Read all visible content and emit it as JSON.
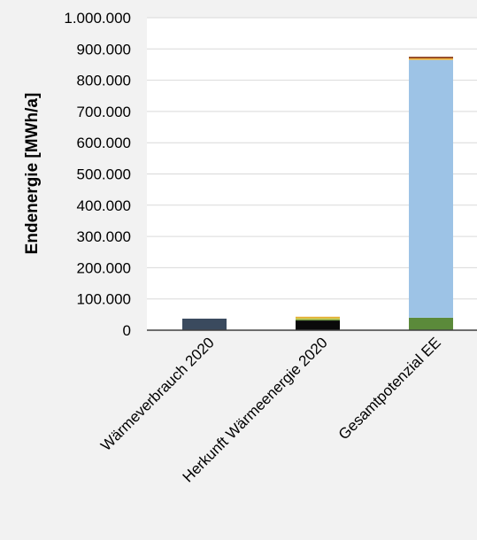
{
  "chart_data": {
    "type": "bar",
    "stacked": true,
    "ylabel": "Endenergie [MWh/a]",
    "ylim": [
      0,
      1000000
    ],
    "yticks": [
      {
        "value": 0,
        "label": "0"
      },
      {
        "value": 100000,
        "label": "100.000"
      },
      {
        "value": 200000,
        "label": "200.000"
      },
      {
        "value": 300000,
        "label": "300.000"
      },
      {
        "value": 400000,
        "label": "400.000"
      },
      {
        "value": 500000,
        "label": "500.000"
      },
      {
        "value": 600000,
        "label": "600.000"
      },
      {
        "value": 700000,
        "label": "700.000"
      },
      {
        "value": 800000,
        "label": "800.000"
      },
      {
        "value": 900000,
        "label": "900.000"
      },
      {
        "value": 1000000,
        "label": "1.000.000"
      }
    ],
    "categories": [
      "Wärmeverbrauch 2020",
      "Herkunft Wärmeenergie 2020",
      "Gesamtpotenzial EE"
    ],
    "grid": true,
    "legend": "none",
    "bars": [
      {
        "segments": [
          {
            "value": 37000,
            "color": "#3a4a5e"
          }
        ]
      },
      {
        "segments": [
          {
            "value": 31000,
            "color": "#0a0a0a"
          },
          {
            "value": 4000,
            "color": "#6f9b3f"
          },
          {
            "value": 5000,
            "color": "#d4c64a"
          },
          {
            "value": 3000,
            "color": "#e6a21e"
          }
        ]
      },
      {
        "segments": [
          {
            "value": 40000,
            "color": "#5b8a3a"
          },
          {
            "value": 825000,
            "color": "#9dc3e6"
          },
          {
            "value": 5000,
            "color": "#f2b43c"
          },
          {
            "value": 5000,
            "color": "#8b3a14"
          }
        ]
      }
    ]
  }
}
